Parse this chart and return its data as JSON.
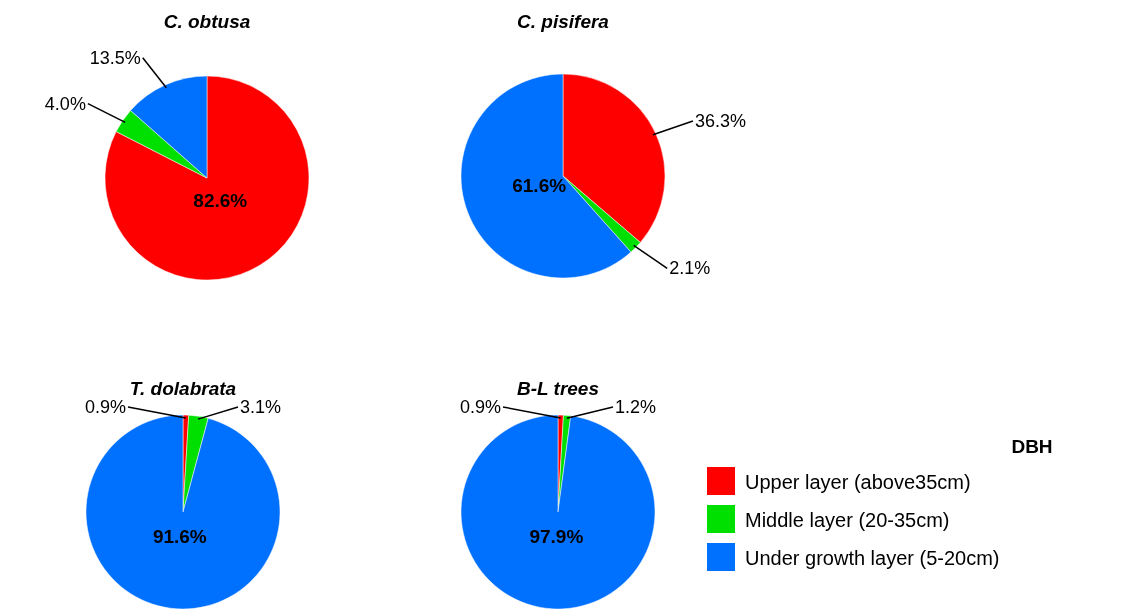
{
  "chart_data": [
    {
      "type": "pie",
      "title": "C. obtusa",
      "categories": [
        null,
        null,
        null
      ],
      "values": [
        82.6,
        4.0,
        13.5
      ],
      "colors": [
        "#ff0000",
        "#00e000",
        "#0070ff"
      ],
      "value_labels": [
        "82.6%",
        "4.0%",
        "13.5%"
      ]
    },
    {
      "type": "pie",
      "title": "C. pisifera",
      "categories": [
        null,
        null,
        null
      ],
      "values": [
        36.3,
        2.1,
        61.6
      ],
      "colors": [
        "#ff0000",
        "#00e000",
        "#0070ff"
      ],
      "value_labels": [
        "36.3%",
        "2.1%",
        "61.6%"
      ]
    },
    {
      "type": "pie",
      "title": "T.  dolabrata",
      "categories": [
        null,
        null,
        null
      ],
      "values": [
        0.9,
        3.1,
        91.6
      ],
      "colors": [
        "#ff0000",
        "#00e000",
        "#0070ff"
      ],
      "value_labels": [
        "0.9%",
        "3.1%",
        "91.6%"
      ]
    },
    {
      "type": "pie",
      "title": "B-L trees",
      "categories": [
        "Upper layer (above35cm)",
        "Middle layer (20-35cm)",
        "Under growth layer (5-20cm)"
      ],
      "values": [
        0.9,
        1.2,
        97.9
      ],
      "colors": [
        "#ff0000",
        "#00e000",
        "#0070ff"
      ],
      "value_labels": [
        "0.9%",
        "1.2%",
        "97.9%"
      ],
      "legend": "right",
      "legend_title": "DBH"
    }
  ]
}
